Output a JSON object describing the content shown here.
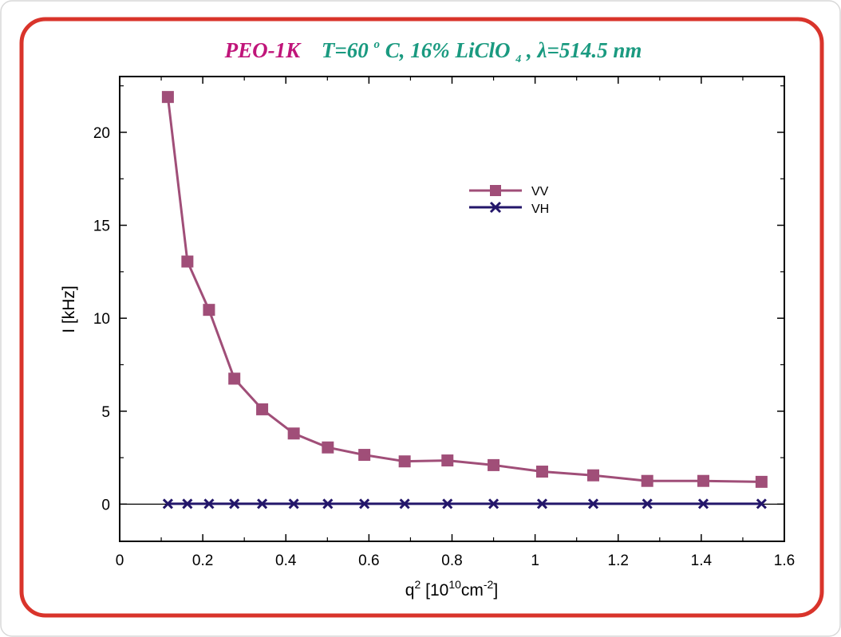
{
  "title": {
    "part1": "PEO-1K",
    "t_prefix": "T=60",
    "t_degree": "o",
    "t_suffix": "C, 16% LiClO",
    "subscript": "4",
    "part2_suffix": ", ",
    "lambda": "λ=514.5 nm"
  },
  "colors": {
    "background": "#ffffff",
    "frame_border": "#d9342b",
    "frame_fill": "#ffffff",
    "outer_border": "#d8d8d8",
    "title_part1": "#c0157a",
    "title_part2": "#1a9a80",
    "vv": "#a04e78",
    "vh": "#23166a",
    "axis": "#000000",
    "zero_line": "#000000"
  },
  "chart_data": {
    "type": "line",
    "title": "PEO-1K  T=60°C, 16% LiClO4, λ=514.5 nm",
    "xlabel_main": "q",
    "xlabel_sup": "2",
    "xlabel_rest1": " [10",
    "xlabel_sup2": "10",
    "xlabel_rest2": "cm",
    "xlabel_sup3": "-2",
    "xlabel_rest3": "]",
    "ylabel": "I [kHz]",
    "xlim": [
      0,
      1.6
    ],
    "ylim": [
      -2,
      23
    ],
    "xticks": [
      0,
      0.2,
      0.4,
      0.6,
      0.8,
      1,
      1.2,
      1.4,
      1.6
    ],
    "xtick_labels": [
      "0",
      "0.2",
      "0.4",
      "0.6",
      "0.8",
      "1",
      "1.2",
      "1.4",
      "1.6"
    ],
    "yticks": [
      0,
      5,
      10,
      15,
      20
    ],
    "ytick_labels": [
      "0",
      "5",
      "10",
      "15",
      "20"
    ],
    "zero_line": true,
    "grid": false,
    "legend_position": "upper-center-right",
    "series": [
      {
        "name": "VV",
        "marker": "square",
        "x": [
          0.116,
          0.163,
          0.215,
          0.276,
          0.343,
          0.419,
          0.501,
          0.589,
          0.686,
          0.789,
          0.9,
          1.017,
          1.14,
          1.27,
          1.405,
          1.545
        ],
        "y": [
          21.9,
          13.05,
          10.45,
          6.75,
          5.1,
          3.8,
          3.05,
          2.65,
          2.3,
          2.35,
          2.1,
          1.75,
          1.55,
          1.25,
          1.25,
          1.2
        ]
      },
      {
        "name": "VH",
        "marker": "x",
        "x": [
          0.116,
          0.163,
          0.215,
          0.276,
          0.343,
          0.419,
          0.501,
          0.589,
          0.686,
          0.789,
          0.9,
          1.017,
          1.14,
          1.27,
          1.405,
          1.545
        ],
        "y": [
          0.02,
          0.02,
          0.02,
          0.02,
          0.02,
          0.02,
          0.02,
          0.02,
          0.02,
          0.02,
          0.02,
          0.02,
          0.02,
          0.02,
          0.02,
          0.02
        ]
      }
    ]
  }
}
